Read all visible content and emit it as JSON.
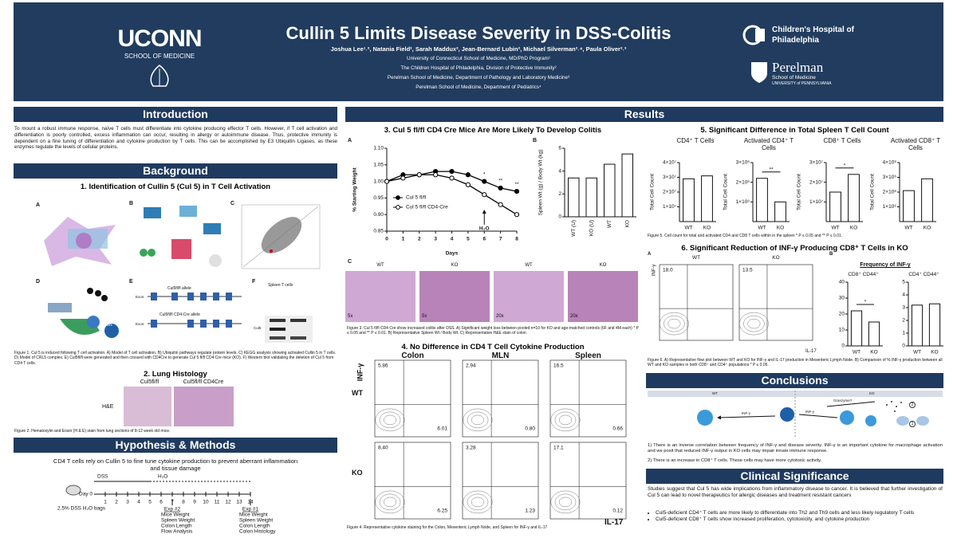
{
  "header": {
    "logo_left": "UCONN",
    "logo_left_sub": "SCHOOL OF MEDICINE",
    "title": "Cullin 5 Limits Disease Severity in DSS-Colitis",
    "authors": "Joshua Lee¹˒², Natania Field², Sarah Maddux², Jean-Bernard Lubin², Michael Silverman²˒⁴, Paula Oliver²˒³",
    "affiliations": [
      "University of Connecticut School of Medicine, MD/PhD Program¹",
      "The Children Hospital of Philadelphia, Division of Protective Immunity²",
      "Perelman School of Medicine, Department of Pathology and Laboratory Medicine³",
      "Perelman School of Medicine, Department of Pediatrics⁴"
    ],
    "logo_right_1": "Children's Hospital of Philadelphia",
    "logo_right_2": "Perelman",
    "logo_right_2_sub": "School of Medicine",
    "logo_right_2_sub2": "UNIVERSITY of PENNSYLVANIA"
  },
  "introduction": {
    "title": "Introduction",
    "text": "To mount a robust immune response, naïve T cells must differentiate into cytokine producing effector T cells. However, if T cell activation and differentiation is poorly controlled, excess inflammation can occur, resulting in allergy or autoimmune disease. Thus, protective immunity is dependent on a fine tuning of differentiation and cytokine production by T cells. This can be accomplished by E3 Ubiquitin Ligases, as these enzymes regulate the levels of cellular proteins."
  },
  "background": {
    "title": "Background",
    "fig1_title": "1. Identification of Cullin 5 (Cul 5) in T Cell Activation",
    "panels": [
      "A",
      "B",
      "C",
      "D",
      "E",
      "F"
    ],
    "fig1_labels": {
      "allele": "Cul5fl/fl allele",
      "allele_cre": "Cul5fl/fl CD4-Cre allele",
      "exon": "Exon:",
      "exon2": "Exon:",
      "spleen": "Spleen T cells",
      "cul5": "Cul5",
      "csn": "CSN"
    },
    "fig1_caption": "Figure 1. Cul 5 is induced following T cell activation. A) Model of T cell activation. B) Ubiquitin pathways regulate protein levels. C) KEGG analysis showing activated Cullin 5 in T cells. D) Model of CRL5 complex. E) Cul5fl/fl were generated and then crossed with CD4Cre to generate Cul 5 fl/fl CD4 Cre mice (KO). F) Western blot validating the deletion of Cul 5 from CD4 T cells.",
    "fig2_title": "2. Lung Histology",
    "fig2_cols": [
      "Cul5fl/fl",
      "Cul5fl/fl CD4Cre"
    ],
    "fig2_row": "H&E",
    "fig2_caption": "Figure 2. Hematoxylin and Eosin (H & E) stain from lung sections of 8-12 week old mice."
  },
  "methods": {
    "title": "Hypothesis & Methods",
    "hypothesis": "CD4 T cells rely on Cullin 5 to fine tune cytokine production to prevent aberrant inflammation and tissue damage",
    "dss": "DSS",
    "h2o": "H₂O",
    "day0": "Day 0",
    "days": [
      1,
      2,
      3,
      4,
      5,
      6,
      7,
      8,
      9,
      10,
      11,
      12,
      13,
      14
    ],
    "bags": "2.5% DSS H₂O bags",
    "exp2": {
      "title": "Exp #2",
      "items": [
        "Mice Weight",
        "Spleen Weight",
        "Colon Length",
        "Flow Analysis"
      ]
    },
    "exp1": {
      "title": "Exp #1",
      "items": [
        "Mice Weight",
        "Spleen Weight",
        "Colon Length",
        "Colon Histology"
      ]
    }
  },
  "results": {
    "title": "Results",
    "fig3": {
      "title": "3. Cul 5 fl/fl CD4 Cre Mice Are More Likely To Develop Colitis",
      "panels": [
        "A",
        "B",
        "C"
      ],
      "chart_a": {
        "type": "line",
        "x": [
          0,
          1,
          2,
          3,
          4,
          5,
          6,
          7,
          8
        ],
        "series": [
          {
            "name": "Cul 5 fl/fl",
            "color": "#000000",
            "marker_fill": "#000000",
            "values": [
              1.0,
              1.02,
              1.02,
              1.03,
              1.03,
              1.02,
              1.0,
              0.98,
              0.97
            ]
          },
          {
            "name": "Cul 5 fl/fl CD4-Cre",
            "color": "#000000",
            "marker_fill": "#ffffff",
            "values": [
              1.0,
              1.01,
              1.02,
              1.02,
              1.01,
              0.99,
              0.96,
              0.93,
              0.9
            ]
          }
        ],
        "xlim": [
          0,
          8
        ],
        "xticks": [
          0,
          1,
          2,
          3,
          4,
          5,
          6,
          7,
          8
        ],
        "ylim": [
          0.85,
          1.1
        ],
        "yticks": [
          {
            "value": 0.85,
            "label": "0.85"
          },
          {
            "value": 0.9,
            "label": "0.90"
          },
          {
            "value": 0.95,
            "label": "0.95"
          },
          {
            "value": 1.0,
            "label": "1.00"
          },
          {
            "value": 1.05,
            "label": "1.05"
          },
          {
            "value": 1.1,
            "label": "1.10"
          }
        ],
        "xlabel": "Days",
        "ylabel": "% Starting Weight",
        "annotations": [
          {
            "x": 6,
            "text": "*"
          },
          {
            "x": 7,
            "text": "**"
          },
          {
            "x": 8,
            "text": "**"
          }
        ],
        "arrow": {
          "x": 6,
          "text": "H₂O"
        }
      },
      "chart_b": {
        "type": "bar",
        "categories": [
          "WT (U)",
          "KO (U)",
          "WT",
          "KO"
        ],
        "values": [
          3.4,
          3.4,
          4.6,
          5.5
        ],
        "color": "#ffffff",
        "ylim": [
          0,
          6
        ],
        "yticks": [
          0,
          2,
          4,
          6
        ],
        "ylabel": "Spleen Wt (g) / Body Wt (kg)"
      },
      "histology": [
        {
          "genotype": "WT",
          "zoom": "5x"
        },
        {
          "genotype": "KO",
          "zoom": "5x"
        },
        {
          "genotype": "WT",
          "zoom": "20x"
        },
        {
          "genotype": "KO",
          "zoom": "20x"
        }
      ],
      "caption": "Figure 3. Cul 5 fl/fl CD4 Cre show increased colitis after DSS. A) Significant weight loss between pooled n=10 for KO and age-matched controls (6F and 4M each) * P ≤ 0.05 and ** P ≤ 0.01. B) Representative Spleen Wt / Body Wt. C) Representative H&E stain of colon."
    },
    "fig4": {
      "title": "4. No Difference in CD4 T Cell Cytokine Production",
      "columns": [
        "Colon",
        "MLN",
        "Spleen"
      ],
      "rows": [
        "WT",
        "KO"
      ],
      "y_axis": "INF-γ",
      "x_axis": "IL-17",
      "plots": [
        [
          {
            "ul": "5.86",
            "lr": "6.01"
          },
          {
            "ul": "2.94",
            "lr": "0.80"
          },
          {
            "ul": "16.5",
            "lr": "0.66"
          }
        ],
        [
          {
            "ul": "8.40",
            "lr": "6.25"
          },
          {
            "ul": "3.28",
            "lr": "1.23"
          },
          {
            "ul": "17.1",
            "lr": "0.12"
          }
        ]
      ],
      "caption": "Figure 4. Representative cytokine staining for the Colon, Mesenteric Lymph Node, and Spleen for INF-γ and IL-17"
    },
    "fig5": {
      "title": "5. Significant Difference in Total Spleen T Cell Count",
      "charts": [
        {
          "type": "bar",
          "title": "CD4⁺ T Cells",
          "ylabel": "Total Cell Count",
          "categories": [
            "WT",
            "KO"
          ],
          "values": [
            29000000,
            31000000
          ],
          "color": "#ffffff",
          "ylim": [
            0,
            40000000
          ],
          "yticks": [
            {
              "value": 10000000,
              "label": "1×10⁷"
            },
            {
              "value": 20000000,
              "label": "2×10⁷"
            },
            {
              "value": 30000000,
              "label": "3×10⁷"
            },
            {
              "value": 40000000,
              "label": "4×10⁷"
            }
          ]
        },
        {
          "type": "bar",
          "title": "Activated CD4⁺ T Cells",
          "ylabel": "Total Cell Count",
          "categories": [
            "WT",
            "KO"
          ],
          "values": [
            2200000,
            1000000
          ],
          "color": "#ffffff",
          "ylim": [
            0,
            3000000
          ],
          "yticks": [
            {
              "value": 1000000,
              "label": "1×10⁶"
            },
            {
              "value": 2000000,
              "label": "2×10⁶"
            },
            {
              "value": 3000000,
              "label": "3×10⁶"
            }
          ],
          "annotation": "**"
        },
        {
          "type": "bar",
          "title": "CD8⁺ T Cells",
          "ylabel": "Total Cell Count",
          "categories": [
            "WT",
            "KO"
          ],
          "values": [
            15000000,
            24000000
          ],
          "color": "#ffffff",
          "ylim": [
            0,
            30000000
          ],
          "yticks": [
            {
              "value": 10000000,
              "label": "1×10⁷"
            },
            {
              "value": 20000000,
              "label": "2×10⁷"
            },
            {
              "value": 30000000,
              "label": "3×10⁷"
            }
          ],
          "annotation": "*"
        },
        {
          "type": "bar",
          "title": "Activated CD8⁺ T Cells",
          "ylabel": "Total Cell Count",
          "categories": [
            "WT",
            "KO"
          ],
          "values": [
            2100000,
            2900000
          ],
          "color": "#ffffff",
          "ylim": [
            0,
            4000000
          ],
          "yticks": [
            {
              "value": 1000000,
              "label": "1×10⁶"
            },
            {
              "value": 2000000,
              "label": "2×10⁶"
            },
            {
              "value": 3000000,
              "label": "3×10⁶"
            },
            {
              "value": 4000000,
              "label": "4×10⁶"
            }
          ]
        }
      ],
      "caption": "Figure 5. Cell count for total and activated CD4 and CD8 T cells within in the spleen * P ≤ 0.05 and ** P ≤ 0.01."
    },
    "fig6": {
      "title": "6. Significant Reduction of INF-γ Producing CD8⁺ T Cells in KO",
      "panels": [
        "A",
        "B"
      ],
      "flow": [
        {
          "genotype": "WT",
          "ul": "18.0"
        },
        {
          "genotype": "KO",
          "ul": "13.5"
        }
      ],
      "y_axis": "INF-γ",
      "x_axis": "IL-17",
      "freq_title": "Frequency of INF-γ",
      "charts": [
        {
          "type": "bar",
          "title": "CD8⁺ CD44⁺",
          "categories": [
            "WT",
            "KO"
          ],
          "values": [
            22,
            15
          ],
          "color": "#ffffff",
          "ylim": [
            0,
            40
          ],
          "yticks": [
            0,
            10,
            20,
            30,
            40
          ],
          "annotation": "*"
        },
        {
          "type": "bar",
          "title": "CD4⁺ CD44⁺",
          "categories": [
            "WT",
            "KO"
          ],
          "values": [
            3.2,
            3.3
          ],
          "color": "#ffffff",
          "ylim": [
            0,
            5
          ],
          "yticks": [
            0,
            1,
            2,
            3,
            4,
            5
          ]
        }
      ],
      "caption": "Figure 6. A) Representative flow plot between WT and KO for INF-γ and IL-17 production in Mesenteric Lymph Node. B) Comparison of % INF-γ production between all WT and KO samples in both CD8⁺ and CD4⁺ populations * P ≤ 0.05."
    }
  },
  "conclusions": {
    "title": "Conclusions",
    "diagram": {
      "wt": "WT",
      "ko": "KO",
      "ifn_wt": "INF-γ",
      "ifn_ko": "INF-γ",
      "granzyme": "Granzyme?",
      "n1": "1",
      "n2": "2"
    },
    "points": [
      "1)  There is an inverse correlation between frequency of INF-γ and disease severity. INF-γ is an important cytokine for macrophage activation and we posit that reduced INF-γ output in KO cells may impair innate immune response.",
      "2)  There is an increase in CD8⁺ T cells. These cells may have more cytotoxic activity."
    ]
  },
  "clinical": {
    "title": "Clinical Significance",
    "text": "Studies suggest that Cul 5 has wide implications from inflammatory disease to cancer. It is believed that further investigation of Cul 5 can lead to novel therapeutics for allergic diseases and treatment resistant cancers",
    "bullets": [
      "Cul5-deficient CD4⁺ T cells are more likely to differentiate into Th2 and Th9 cells and less likely regulatory T cells",
      "Cul5-deficient CD8⁺ T cells show increased proliferation, cytotoxicity, and cytokine production"
    ]
  }
}
